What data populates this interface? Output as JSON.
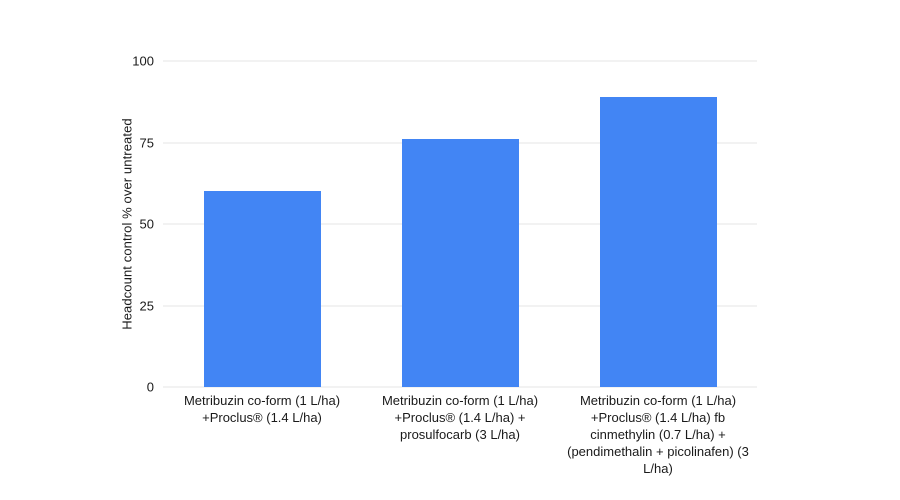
{
  "chart_data": {
    "type": "bar",
    "title": "",
    "xlabel": "",
    "ylabel": "Headcount control % over untreated",
    "categories": [
      "Metribuzin co-form (1 L/ha) +Proclus® (1.4 L/ha)",
      "Metribuzin co-form (1 L/ha) +Proclus® (1.4 L/ha) + prosulfocarb (3 L/ha)",
      "Metribuzin co-form (1 L/ha) +Proclus® (1.4 L/ha) fb cinmethylin (0.7 L/ha) + (pendimethalin + picolinafen) (3 L/ha)"
    ],
    "values": [
      60,
      76,
      89
    ],
    "ylim": [
      0,
      100
    ],
    "yticks": [
      0,
      25,
      50,
      75,
      100
    ],
    "grid": "horizontal",
    "legend_position": "none",
    "bar_color": "#4285f4",
    "gridline_color": "#e6e6e6",
    "text_color": "#1a1a1a"
  }
}
